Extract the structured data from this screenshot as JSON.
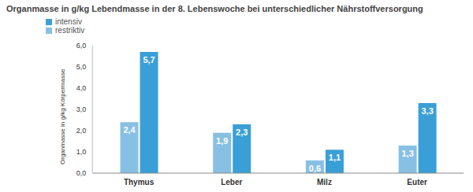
{
  "chart_data": {
    "type": "bar",
    "title": "Organmasse in g/kg Lebendmasse in der 8. Lebenswoche bei unterschiedlicher Nährstoffversorgung",
    "y_label": "Organmasse in g/kg Körpermasse",
    "categories": [
      "Thymus",
      "Leber",
      "Milz",
      "Euter"
    ],
    "series": [
      {
        "name": "restriktiv",
        "color": "#88c0e3",
        "values": [
          2.4,
          1.9,
          0.6,
          1.3
        ],
        "value_labels": [
          "2,4",
          "1,9",
          "0,6",
          "1,3"
        ]
      },
      {
        "name": "intensiv",
        "color": "#3a9fd6",
        "values": [
          5.7,
          2.3,
          1.1,
          3.3
        ],
        "value_labels": [
          "5,7",
          "2,3",
          "1,1",
          "3,3"
        ]
      }
    ],
    "ylim": [
      0,
      6
    ],
    "yticks": [
      {
        "value": 0,
        "label": "0,0"
      },
      {
        "value": 1,
        "label": "1,0"
      },
      {
        "value": 2,
        "label": "2,0"
      },
      {
        "value": 3,
        "label": "3,0"
      },
      {
        "value": 4,
        "label": "4,0"
      },
      {
        "value": 5,
        "label": "5,0"
      },
      {
        "value": 6,
        "label": "6,0"
      }
    ],
    "grid": false,
    "legend": "upper left",
    "data_labels": true
  }
}
